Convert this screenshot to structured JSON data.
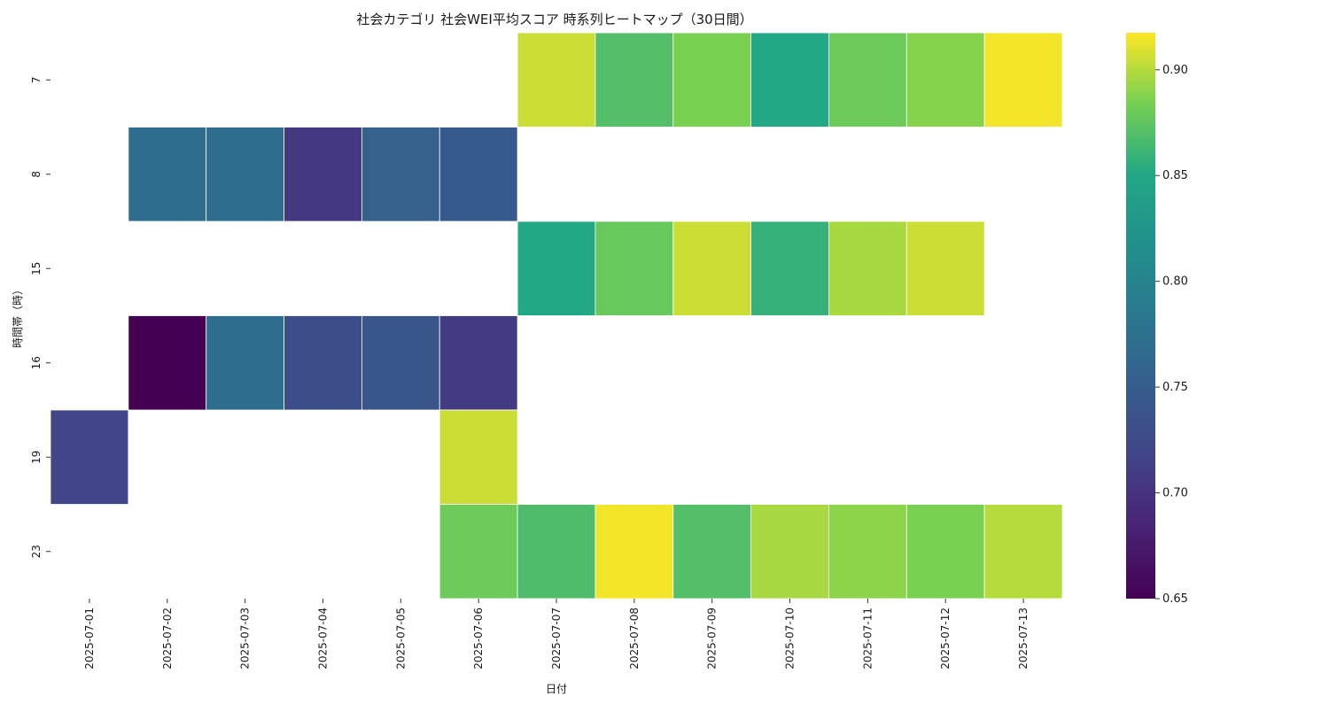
{
  "chart_data": {
    "type": "heatmap",
    "title": "社会カテゴリ 社会WEI平均スコア 時系列ヒートマップ（30日間）",
    "xlabel": "日付",
    "ylabel": "時間帯（時）",
    "x_categories": [
      "2025-07-01",
      "2025-07-02",
      "2025-07-03",
      "2025-07-04",
      "2025-07-05",
      "2025-07-06",
      "2025-07-07",
      "2025-07-08",
      "2025-07-09",
      "2025-07-10",
      "2025-07-11",
      "2025-07-12",
      "2025-07-13"
    ],
    "y_categories": [
      "7",
      "8",
      "15",
      "16",
      "19",
      "23"
    ],
    "values": [
      [
        null,
        null,
        null,
        null,
        null,
        null,
        0.905,
        0.87,
        0.885,
        0.85,
        0.88,
        0.888,
        0.915
      ],
      [
        null,
        0.77,
        0.77,
        0.705,
        0.755,
        0.745,
        null,
        null,
        null,
        null,
        null,
        null,
        null
      ],
      [
        null,
        null,
        null,
        null,
        null,
        null,
        0.85,
        0.878,
        0.905,
        0.858,
        0.897,
        0.905,
        null
      ],
      [
        null,
        0.65,
        0.77,
        0.73,
        0.74,
        0.708,
        null,
        null,
        null,
        null,
        null,
        null,
        null
      ],
      [
        0.72,
        null,
        null,
        null,
        null,
        0.905,
        null,
        null,
        null,
        null,
        null,
        null,
        null
      ],
      [
        null,
        null,
        null,
        null,
        null,
        0.88,
        0.868,
        0.915,
        0.87,
        0.897,
        0.89,
        0.885,
        0.9
      ]
    ],
    "colorbar": {
      "colormap": "viridis",
      "min": 0.65,
      "max": 0.9175,
      "ticks": [
        "0.65",
        "0.70",
        "0.75",
        "0.80",
        "0.85",
        "0.90"
      ]
    },
    "missing_cells": "blank"
  }
}
